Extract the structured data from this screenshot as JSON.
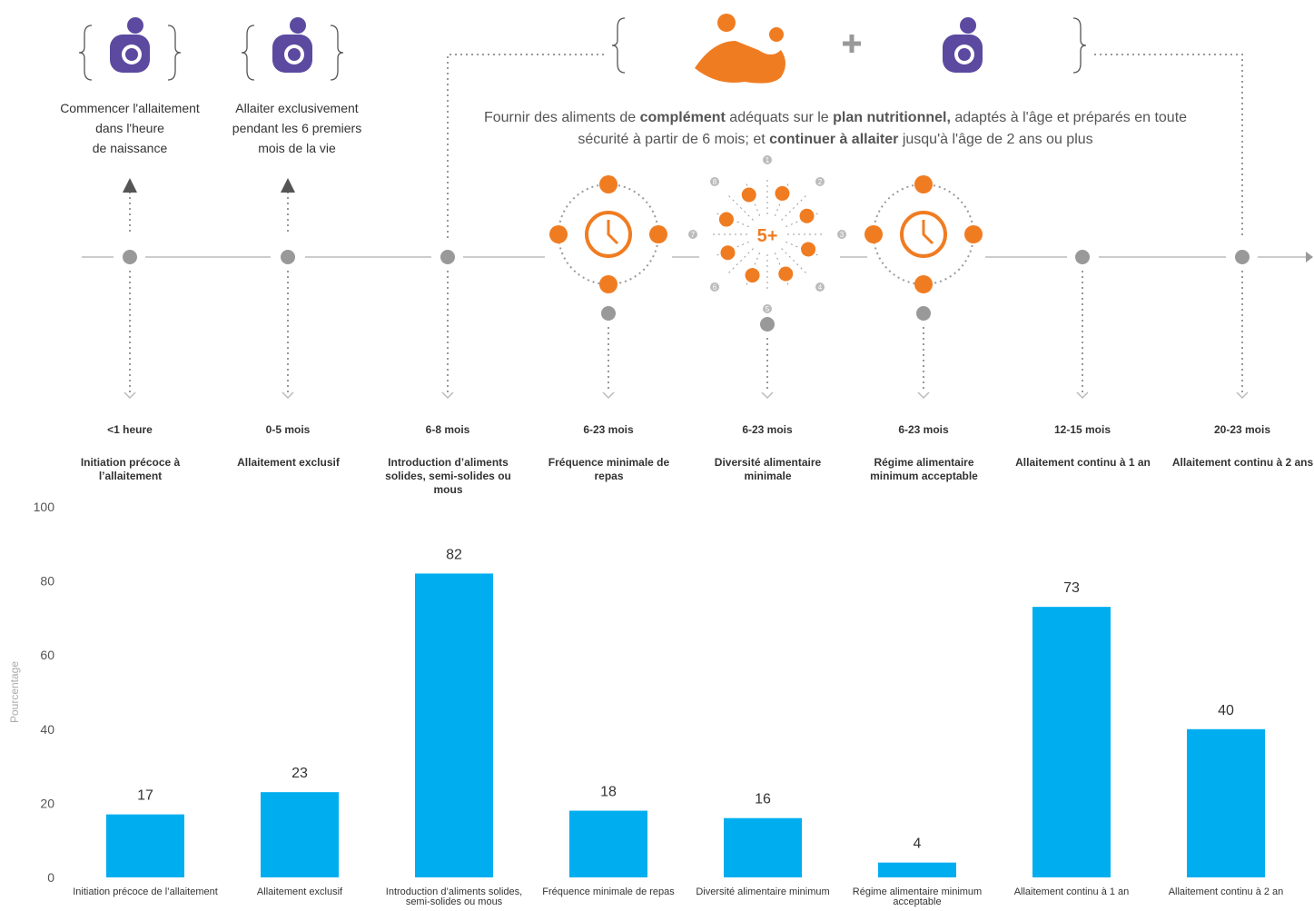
{
  "messages": [
    [
      "Commencer l'allaitement",
      "dans l'heure",
      "de naissance"
    ],
    [
      "Allaiter exclusivement",
      "pendant les 6 premiers",
      "mois de la vie"
    ]
  ],
  "intro": {
    "segments": [
      {
        "text": "Fournir des aliments de ",
        "bold": false
      },
      {
        "text": "complément",
        "bold": true
      },
      {
        "text": " adéquats sur le ",
        "bold": false
      },
      {
        "text": "plan nutritionnel,",
        "bold": true
      },
      {
        "text": " adaptés à l'âge et préparés en toute sécurité à partir de 6 mois; et ",
        "bold": false
      },
      {
        "text": "continuer à allaiter",
        "bold": true
      },
      {
        "text": " jusqu'à l'âge de 2 ans ou plus",
        "bold": false
      }
    ]
  },
  "diversity": {
    "label": "5+",
    "groups": [
      "1",
      "2",
      "3",
      "4",
      "5",
      "6",
      "7",
      "8"
    ]
  },
  "timeline": [
    {
      "age": "<1 heure",
      "indicator": "Initiation précoce à l’allaitement"
    },
    {
      "age": "0-5 mois",
      "indicator": "Allaitement exclusif"
    },
    {
      "age": "6-8 mois",
      "indicator": "Introduction d’aliments solides, semi-solides ou mous"
    },
    {
      "age": "6-23 mois",
      "indicator": "Fréquence minimale de repas"
    },
    {
      "age": "6-23 mois",
      "indicator": "Diversité alimentaire minimale"
    },
    {
      "age": "6-23 mois",
      "indicator": "Régime alimentaire minimum acceptable"
    },
    {
      "age": "12-15 mois",
      "indicator": "Allaitement continu à 1 an"
    },
    {
      "age": "20-23 mois",
      "indicator": "Allaitement continu à 2 ans"
    }
  ],
  "chart_data": {
    "type": "bar",
    "y_label": "Pourcentage",
    "categories": [
      "Initiation précoce de l’allaitement",
      "Allaitement exclusif",
      "Introduction d’aliments solides, semi-solides ou mous",
      "Fréquence minimale de repas",
      "Diversité alimentaire minimum",
      "Régime alimentaire minimum acceptable",
      "Allaitement continu à 1 an",
      "Allaitement continu à 2 an"
    ],
    "values": [
      17,
      23,
      82,
      18,
      16,
      4,
      73,
      40
    ],
    "color": "#00aeef",
    "ylim": [
      0,
      100
    ],
    "yticks": [
      0,
      20,
      40,
      60,
      80,
      100
    ],
    "grid": false
  }
}
